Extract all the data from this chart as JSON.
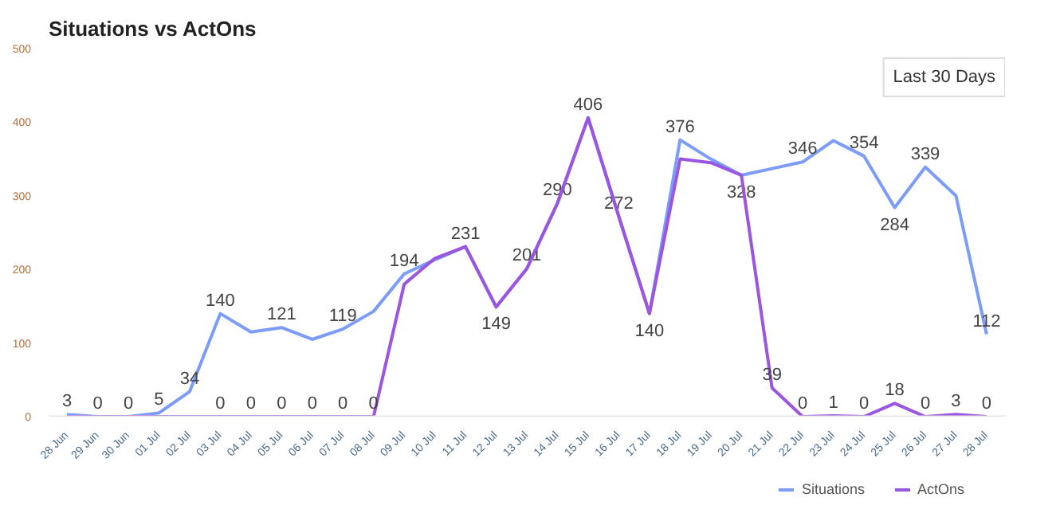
{
  "chart_data": {
    "type": "line",
    "title": "Situations vs ActOns",
    "annotations": [
      "Last 30 Days"
    ],
    "categories": [
      "28 Jun",
      "29 Jun",
      "30 Jun",
      "01 Jul",
      "02 Jul",
      "03 Jul",
      "04 Jul",
      "05 Jul",
      "06 Jul",
      "07 Jul",
      "08 Jul",
      "09 Jul",
      "10 Jul",
      "11 Jul",
      "12 Jul",
      "13 Jul",
      "14 Jul",
      "15 Jul",
      "16 Jul",
      "17 Jul",
      "18 Jul",
      "19 Jul",
      "20 Jul",
      "21 Jul",
      "22 Jul",
      "23 Jul",
      "24 Jul",
      "25 Jul",
      "26 Jul",
      "27 Jul",
      "28 Jul"
    ],
    "series": [
      {
        "name": "Situations",
        "color": "#7b9cf7",
        "values": [
          3,
          0,
          0,
          5,
          34,
          140,
          115,
          121,
          105,
          119,
          143,
          194,
          213,
          231,
          149,
          201,
          290,
          406,
          272,
          140,
          376,
          350,
          328,
          337,
          346,
          375,
          354,
          284,
          339,
          300,
          112
        ],
        "value_labels": [
          "3",
          null,
          null,
          "5",
          "34",
          "140",
          null,
          "121",
          null,
          "119",
          null,
          "194",
          null,
          "231",
          "149",
          "201",
          "290",
          "406",
          "272",
          "140",
          "376",
          null,
          "328",
          null,
          "346",
          null,
          "354",
          "284",
          "339",
          null,
          "112"
        ]
      },
      {
        "name": "ActOns",
        "color": "#9b55e0",
        "values": [
          0,
          0,
          0,
          0,
          0,
          0,
          0,
          0,
          0,
          0,
          0,
          180,
          215,
          231,
          149,
          201,
          290,
          406,
          272,
          140,
          350,
          345,
          328,
          39,
          0,
          1,
          0,
          18,
          0,
          3,
          0
        ],
        "value_labels": [
          null,
          "0",
          "0",
          null,
          null,
          "0",
          "0",
          "0",
          "0",
          "0",
          "0",
          null,
          null,
          null,
          null,
          null,
          null,
          null,
          null,
          null,
          null,
          null,
          null,
          "39",
          "0",
          "1",
          "0",
          "18",
          "0",
          "3",
          "0"
        ]
      }
    ],
    "ylim": [
      0,
      500
    ],
    "yticks": [
      0,
      100,
      200,
      300,
      400,
      500
    ],
    "grid": false,
    "legend": "bottom right",
    "line_style": "solid",
    "marker": "none"
  }
}
